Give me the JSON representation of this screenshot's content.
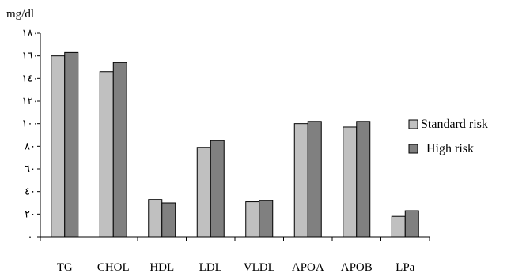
{
  "chart_data": {
    "type": "bar",
    "title": "",
    "xlabel": "",
    "ylabel": "mg/dl",
    "ylim": [
      0,
      180
    ],
    "yticks": [
      0,
      20,
      40,
      60,
      80,
      100,
      120,
      140,
      160,
      180
    ],
    "ytick_labels": [
      "٠",
      "٢٠",
      "٤٠",
      "٦٠",
      "٨٠",
      "١٠٠",
      "١٢٠",
      "١٤٠",
      "١٦٠",
      "١٨٠"
    ],
    "grid": false,
    "legend_position": "right",
    "categories": [
      "TG",
      "CHOL",
      "HDL",
      "LDL",
      "VLDL",
      "APOA",
      "APOB",
      "LPa"
    ],
    "series": [
      {
        "name": "Standard risk",
        "color": "#c0c0c0",
        "values": [
          160,
          146,
          33,
          79,
          31,
          100,
          97,
          18
        ]
      },
      {
        "name": "High risk",
        "color": "#808080",
        "values": [
          163,
          154,
          30,
          85,
          32,
          102,
          102,
          23
        ]
      }
    ]
  }
}
